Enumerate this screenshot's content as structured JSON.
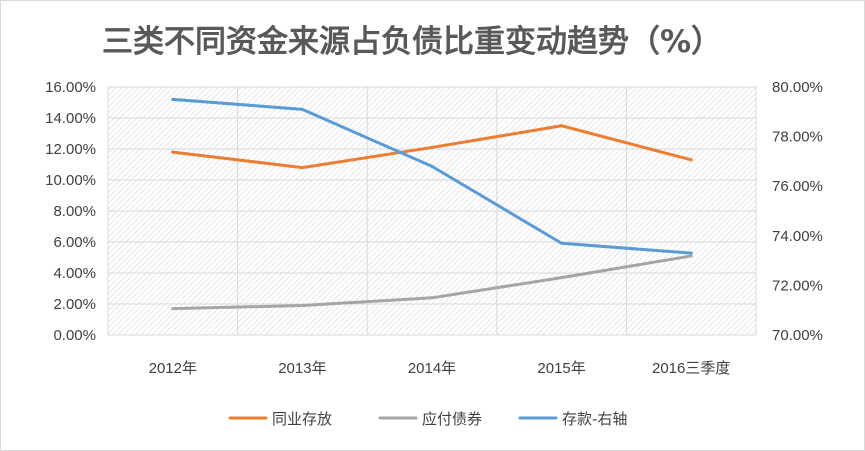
{
  "chart_data": {
    "type": "line",
    "title": "三类不同资金来源占负债比重变动趋势（%）",
    "categories": [
      "2012年",
      "2013年",
      "2014年",
      "2015年",
      "2016三季度"
    ],
    "y_left": {
      "range": [
        0,
        16
      ],
      "ticks": [
        "0.00%",
        "2.00%",
        "4.00%",
        "6.00%",
        "8.00%",
        "10.00%",
        "12.00%",
        "14.00%",
        "16.00%"
      ]
    },
    "y_right": {
      "range": [
        70,
        80
      ],
      "ticks": [
        "70.00%",
        "72.00%",
        "74.00%",
        "76.00%",
        "78.00%",
        "80.00%"
      ]
    },
    "series": [
      {
        "name": "同业存放",
        "axis": "left",
        "color": "#ED7D31",
        "values": [
          11.8,
          10.8,
          12.1,
          13.5,
          11.3
        ]
      },
      {
        "name": "应付债券",
        "axis": "left",
        "color": "#A5A5A5",
        "values": [
          1.7,
          1.9,
          2.4,
          3.7,
          5.1
        ]
      },
      {
        "name": "存款-右轴",
        "axis": "right",
        "color": "#5B9BD5",
        "values": [
          79.5,
          79.1,
          76.8,
          73.7,
          73.3
        ]
      }
    ],
    "grid": true,
    "hatched_plot_background": true,
    "legend_position": "bottom"
  }
}
